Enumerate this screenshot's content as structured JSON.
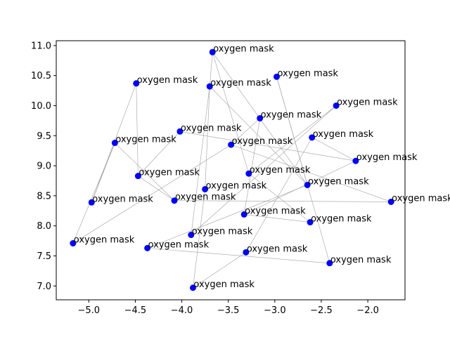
{
  "chart_data": {
    "type": "scatter",
    "title": "",
    "xlabel": "",
    "ylabel": "",
    "xlim": [
      -5.35,
      -1.6
    ],
    "ylim": [
      6.77,
      11.08
    ],
    "xticks": [
      -5.0,
      -4.5,
      -4.0,
      -3.5,
      -3.0,
      -2.5,
      -2.0
    ],
    "xtick_labels": [
      "−5.0",
      "−4.5",
      "−4.0",
      "−3.5",
      "−3.0",
      "−2.5",
      "−2.0"
    ],
    "yticks": [
      7.0,
      7.5,
      8.0,
      8.5,
      9.0,
      9.5,
      10.0,
      10.5,
      11.0
    ],
    "ytick_labels": [
      "7.0",
      "7.5",
      "8.0",
      "8.5",
      "9.0",
      "9.5",
      "10.0",
      "10.5",
      "11.0"
    ],
    "grid": false,
    "legend": "none",
    "marker_color": "#0000ff",
    "line_color": "#a0a0a0",
    "points": [
      {
        "x": -3.67,
        "y": 10.89,
        "label": "oxygen mask"
      },
      {
        "x": -2.98,
        "y": 10.48,
        "label": "oxygen mask"
      },
      {
        "x": -4.49,
        "y": 10.37,
        "label": "oxygen mask"
      },
      {
        "x": -3.7,
        "y": 10.32,
        "label": "oxygen mask"
      },
      {
        "x": -2.34,
        "y": 10.0,
        "label": "oxygen mask"
      },
      {
        "x": -3.16,
        "y": 9.79,
        "label": "oxygen mask"
      },
      {
        "x": -4.02,
        "y": 9.57,
        "label": "oxygen mask"
      },
      {
        "x": -2.6,
        "y": 9.47,
        "label": "oxygen mask"
      },
      {
        "x": -4.72,
        "y": 9.38,
        "label": "oxygen mask"
      },
      {
        "x": -3.47,
        "y": 9.35,
        "label": "oxygen mask"
      },
      {
        "x": -2.13,
        "y": 9.08,
        "label": "oxygen mask"
      },
      {
        "x": -3.28,
        "y": 8.87,
        "label": "oxygen mask"
      },
      {
        "x": -4.47,
        "y": 8.83,
        "label": "oxygen mask"
      },
      {
        "x": -2.65,
        "y": 8.68,
        "label": "oxygen mask"
      },
      {
        "x": -3.75,
        "y": 8.61,
        "label": "oxygen mask"
      },
      {
        "x": -4.08,
        "y": 8.42,
        "label": "oxygen mask"
      },
      {
        "x": -4.97,
        "y": 8.39,
        "label": "oxygen mask"
      },
      {
        "x": -1.75,
        "y": 8.4,
        "label": "oxygen mask"
      },
      {
        "x": -3.33,
        "y": 8.19,
        "label": "oxygen mask"
      },
      {
        "x": -2.62,
        "y": 8.06,
        "label": "oxygen mask"
      },
      {
        "x": -3.9,
        "y": 7.85,
        "label": "oxygen mask"
      },
      {
        "x": -5.17,
        "y": 7.71,
        "label": "oxygen mask"
      },
      {
        "x": -4.37,
        "y": 7.63,
        "label": "oxygen mask"
      },
      {
        "x": -3.31,
        "y": 7.56,
        "label": "oxygen mask"
      },
      {
        "x": -2.41,
        "y": 7.38,
        "label": "oxygen mask"
      },
      {
        "x": -3.88,
        "y": 6.97,
        "label": "oxygen mask"
      }
    ],
    "edges": [
      [
        8,
        16
      ],
      [
        8,
        21
      ],
      [
        8,
        15
      ],
      [
        2,
        12
      ],
      [
        2,
        16
      ],
      [
        12,
        15
      ],
      [
        6,
        10
      ],
      [
        3,
        14
      ],
      [
        3,
        20
      ],
      [
        0,
        3
      ],
      [
        0,
        11
      ],
      [
        0,
        13
      ],
      [
        1,
        13
      ],
      [
        1,
        24
      ],
      [
        9,
        5
      ],
      [
        9,
        21
      ],
      [
        9,
        17
      ],
      [
        5,
        18
      ],
      [
        11,
        4
      ],
      [
        11,
        19
      ],
      [
        4,
        20
      ],
      [
        7,
        23
      ],
      [
        7,
        10
      ],
      [
        10,
        18
      ],
      [
        14,
        25
      ],
      [
        18,
        19
      ],
      [
        15,
        17
      ],
      [
        22,
        24
      ],
      [
        22,
        13
      ],
      [
        23,
        25
      ],
      [
        3,
        13
      ],
      [
        6,
        12
      ]
    ]
  }
}
